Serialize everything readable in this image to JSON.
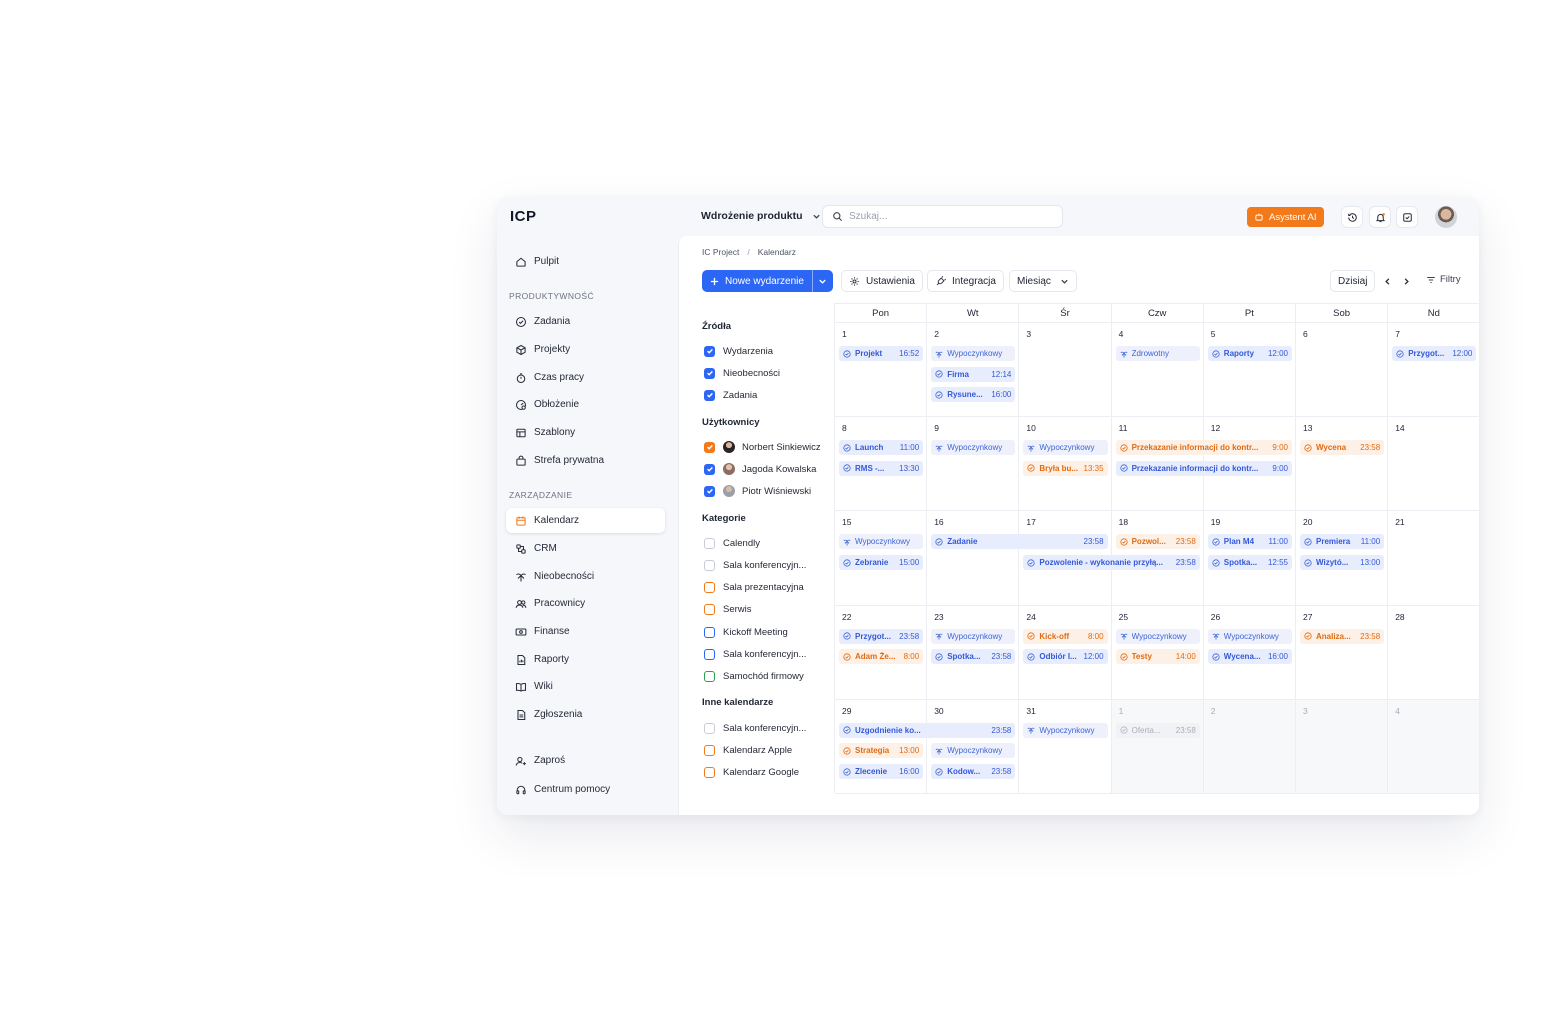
{
  "brand": {
    "logo": "ICP"
  },
  "header": {
    "project": "Wdrożenie produktu",
    "search_placeholder": "Szukaj...",
    "ai_button": "Asystent AI",
    "colors": {
      "accent": "#2c66f5",
      "ai": "#f27a1a"
    }
  },
  "sidebar": {
    "dashboard": "Pulpit",
    "section_productivity": "PRODUKTYWNOŚĆ",
    "productivity": [
      "Zadania",
      "Projekty",
      "Czas pracy",
      "Obłożenie",
      "Szablony",
      "Strefa prywatna"
    ],
    "section_management": "ZARZĄDZANIE",
    "management": [
      "Kalendarz",
      "CRM",
      "Nieobecności",
      "Pracownicy",
      "Finanse",
      "Raporty",
      "Wiki",
      "Zgłoszenia"
    ],
    "invite": "Zaproś",
    "help": "Centrum pomocy"
  },
  "breadcrumb": {
    "root": "IC Project",
    "sep": "/",
    "current": "Kalendarz"
  },
  "toolbar": {
    "new_event": "Nowe wydarzenie",
    "settings": "Ustawienia",
    "integration": "Integracja",
    "view": "Miesiąc",
    "today": "Dzisiaj",
    "filters": "Filtry"
  },
  "filters": {
    "sources_title": "Źródła",
    "sources": [
      "Wydarzenia",
      "Nieobecności",
      "Zadania"
    ],
    "users_title": "Użytkownicy",
    "users": [
      "Norbert Sinkiewicz",
      "Jagoda Kowalska",
      "Piotr Wiśniewski"
    ],
    "categories_title": "Kategorie",
    "categories": [
      "Calendly",
      "Sala konferencyjn...",
      "Sala prezentacyjna",
      "Serwis",
      "Kickoff Meeting",
      "Sala konferencyjn...",
      "Samochód firmowy"
    ],
    "other_title": "Inne kalendarze",
    "other": [
      "Sala konferencyjn...",
      "Kalendarz Apple",
      "Kalendarz Google"
    ]
  },
  "calendar": {
    "weekdays": [
      "Pon",
      "Wt",
      "Śr",
      "Czw",
      "Pt",
      "Sob",
      "Nd"
    ],
    "weeks": [
      [
        "1",
        "2",
        "3",
        "4",
        "5",
        "6",
        "7"
      ],
      [
        "8",
        "9",
        "10",
        "11",
        "12",
        "13",
        "14"
      ],
      [
        "15",
        "16",
        "17",
        "18",
        "19",
        "20",
        "21"
      ],
      [
        "22",
        "23",
        "24",
        "25",
        "26",
        "27",
        "28"
      ],
      [
        "29",
        "30",
        "31",
        "1",
        "2",
        "3",
        "4"
      ]
    ],
    "events": [
      {
        "week": 0,
        "day": 0,
        "slot": 0,
        "span": 1,
        "title": "Projekt",
        "time": "16:52",
        "kind": "blue"
      },
      {
        "week": 0,
        "day": 1,
        "slot": 0,
        "span": 1,
        "title": "Wypoczynkowy",
        "time": "",
        "kind": "vac"
      },
      {
        "week": 0,
        "day": 1,
        "slot": 1,
        "span": 1,
        "title": "Firma",
        "time": "12:14",
        "kind": "blue"
      },
      {
        "week": 0,
        "day": 1,
        "slot": 2,
        "span": 1,
        "title": "Rysune...",
        "time": "16:00",
        "kind": "blue"
      },
      {
        "week": 0,
        "day": 3,
        "slot": 0,
        "span": 1,
        "title": "Zdrowotny",
        "time": "",
        "kind": "vac"
      },
      {
        "week": 0,
        "day": 4,
        "slot": 0,
        "span": 1,
        "title": "Raporty",
        "time": "12:00",
        "kind": "blue"
      },
      {
        "week": 0,
        "day": 6,
        "slot": 0,
        "span": 1,
        "title": "Przygot...",
        "time": "12:00",
        "kind": "blue"
      },
      {
        "week": 1,
        "day": 0,
        "slot": 0,
        "span": 1,
        "title": "Launch",
        "time": "11:00",
        "kind": "blue"
      },
      {
        "week": 1,
        "day": 0,
        "slot": 1,
        "span": 1,
        "title": "RMS -...",
        "time": "13:30",
        "kind": "blue"
      },
      {
        "week": 1,
        "day": 1,
        "slot": 0,
        "span": 1,
        "title": "Wypoczynkowy",
        "time": "",
        "kind": "vac"
      },
      {
        "week": 1,
        "day": 2,
        "slot": 0,
        "span": 1,
        "title": "Wypoczynkowy",
        "time": "",
        "kind": "vac"
      },
      {
        "week": 1,
        "day": 2,
        "slot": 1,
        "span": 1,
        "title": "Bryła bu...",
        "time": "13:35",
        "kind": "orange"
      },
      {
        "week": 1,
        "day": 3,
        "slot": 0,
        "span": 2,
        "title": "Przekazanie informacji do kontr...",
        "time": "9:00",
        "kind": "orange"
      },
      {
        "week": 1,
        "day": 3,
        "slot": 1,
        "span": 2,
        "title": "Przekazanie informacji do kontr...",
        "time": "9:00",
        "kind": "blue"
      },
      {
        "week": 1,
        "day": 5,
        "slot": 0,
        "span": 1,
        "title": "Wycena",
        "time": "23:58",
        "kind": "orange"
      },
      {
        "week": 2,
        "day": 0,
        "slot": 0,
        "span": 1,
        "title": "Wypoczynkowy",
        "time": "",
        "kind": "vac"
      },
      {
        "week": 2,
        "day": 0,
        "slot": 1,
        "span": 1,
        "title": "Zebranie",
        "time": "15:00",
        "kind": "blue"
      },
      {
        "week": 2,
        "day": 1,
        "slot": 0,
        "span": 2,
        "title": "Zadanie",
        "time": "23:58",
        "kind": "blue"
      },
      {
        "week": 2,
        "day": 2,
        "slot": 1,
        "span": 2,
        "title": "Pozwolenie - wykonanie przyłą...",
        "time": "23:58",
        "kind": "blue"
      },
      {
        "week": 2,
        "day": 3,
        "slot": 0,
        "span": 1,
        "title": "Pozwol...",
        "time": "23:58",
        "kind": "orange"
      },
      {
        "week": 2,
        "day": 4,
        "slot": 0,
        "span": 1,
        "title": "Plan M4",
        "time": "11:00",
        "kind": "blue"
      },
      {
        "week": 2,
        "day": 4,
        "slot": 1,
        "span": 1,
        "title": "Spotka...",
        "time": "12:55",
        "kind": "blue"
      },
      {
        "week": 2,
        "day": 5,
        "slot": 0,
        "span": 1,
        "title": "Premiera",
        "time": "11:00",
        "kind": "blue"
      },
      {
        "week": 2,
        "day": 5,
        "slot": 1,
        "span": 1,
        "title": "Wizytó...",
        "time": "13:00",
        "kind": "blue"
      },
      {
        "week": 3,
        "day": 0,
        "slot": 0,
        "span": 1,
        "title": "Przygot...",
        "time": "23:58",
        "kind": "blue"
      },
      {
        "week": 3,
        "day": 0,
        "slot": 1,
        "span": 1,
        "title": "Adam Że...",
        "time": "8:00",
        "kind": "orange"
      },
      {
        "week": 3,
        "day": 1,
        "slot": 0,
        "span": 1,
        "title": "Wypoczynkowy",
        "time": "",
        "kind": "vac"
      },
      {
        "week": 3,
        "day": 1,
        "slot": 1,
        "span": 1,
        "title": "Spotka...",
        "time": "23:58",
        "kind": "blue"
      },
      {
        "week": 3,
        "day": 2,
        "slot": 0,
        "span": 1,
        "title": "Kick-off",
        "time": "8:00",
        "kind": "orange"
      },
      {
        "week": 3,
        "day": 2,
        "slot": 1,
        "span": 1,
        "title": "Odbiór I...",
        "time": "12:00",
        "kind": "blue"
      },
      {
        "week": 3,
        "day": 3,
        "slot": 0,
        "span": 1,
        "title": "Wypoczynkowy",
        "time": "",
        "kind": "vac"
      },
      {
        "week": 3,
        "day": 3,
        "slot": 1,
        "span": 1,
        "title": "Testy",
        "time": "14:00",
        "kind": "orange"
      },
      {
        "week": 3,
        "day": 4,
        "slot": 0,
        "span": 1,
        "title": "Wypoczynkowy",
        "time": "",
        "kind": "vac"
      },
      {
        "week": 3,
        "day": 4,
        "slot": 1,
        "span": 1,
        "title": "Wycena...",
        "time": "16:00",
        "kind": "blue"
      },
      {
        "week": 3,
        "day": 5,
        "slot": 0,
        "span": 1,
        "title": "Analiza...",
        "time": "23:58",
        "kind": "orange"
      },
      {
        "week": 4,
        "day": 0,
        "slot": 0,
        "span": 2,
        "title": "Uzgodnienie ko...",
        "time": "23:58",
        "kind": "blue"
      },
      {
        "week": 4,
        "day": 0,
        "slot": 1,
        "span": 1,
        "title": "Strategia",
        "time": "13:00",
        "kind": "orange"
      },
      {
        "week": 4,
        "day": 0,
        "slot": 2,
        "span": 1,
        "title": "Zlecenie",
        "time": "16:00",
        "kind": "blue"
      },
      {
        "week": 4,
        "day": 1,
        "slot": 1,
        "span": 1,
        "title": "Wypoczynkowy",
        "time": "",
        "kind": "vac"
      },
      {
        "week": 4,
        "day": 1,
        "slot": 2,
        "span": 1,
        "title": "Kodow...",
        "time": "23:58",
        "kind": "blue"
      },
      {
        "week": 4,
        "day": 2,
        "slot": 0,
        "span": 1,
        "title": "Wypoczynkowy",
        "time": "",
        "kind": "vac"
      },
      {
        "week": 4,
        "day": 3,
        "slot": 0,
        "span": 1,
        "title": "Oferta...",
        "time": "23:58",
        "kind": "faded"
      }
    ]
  }
}
